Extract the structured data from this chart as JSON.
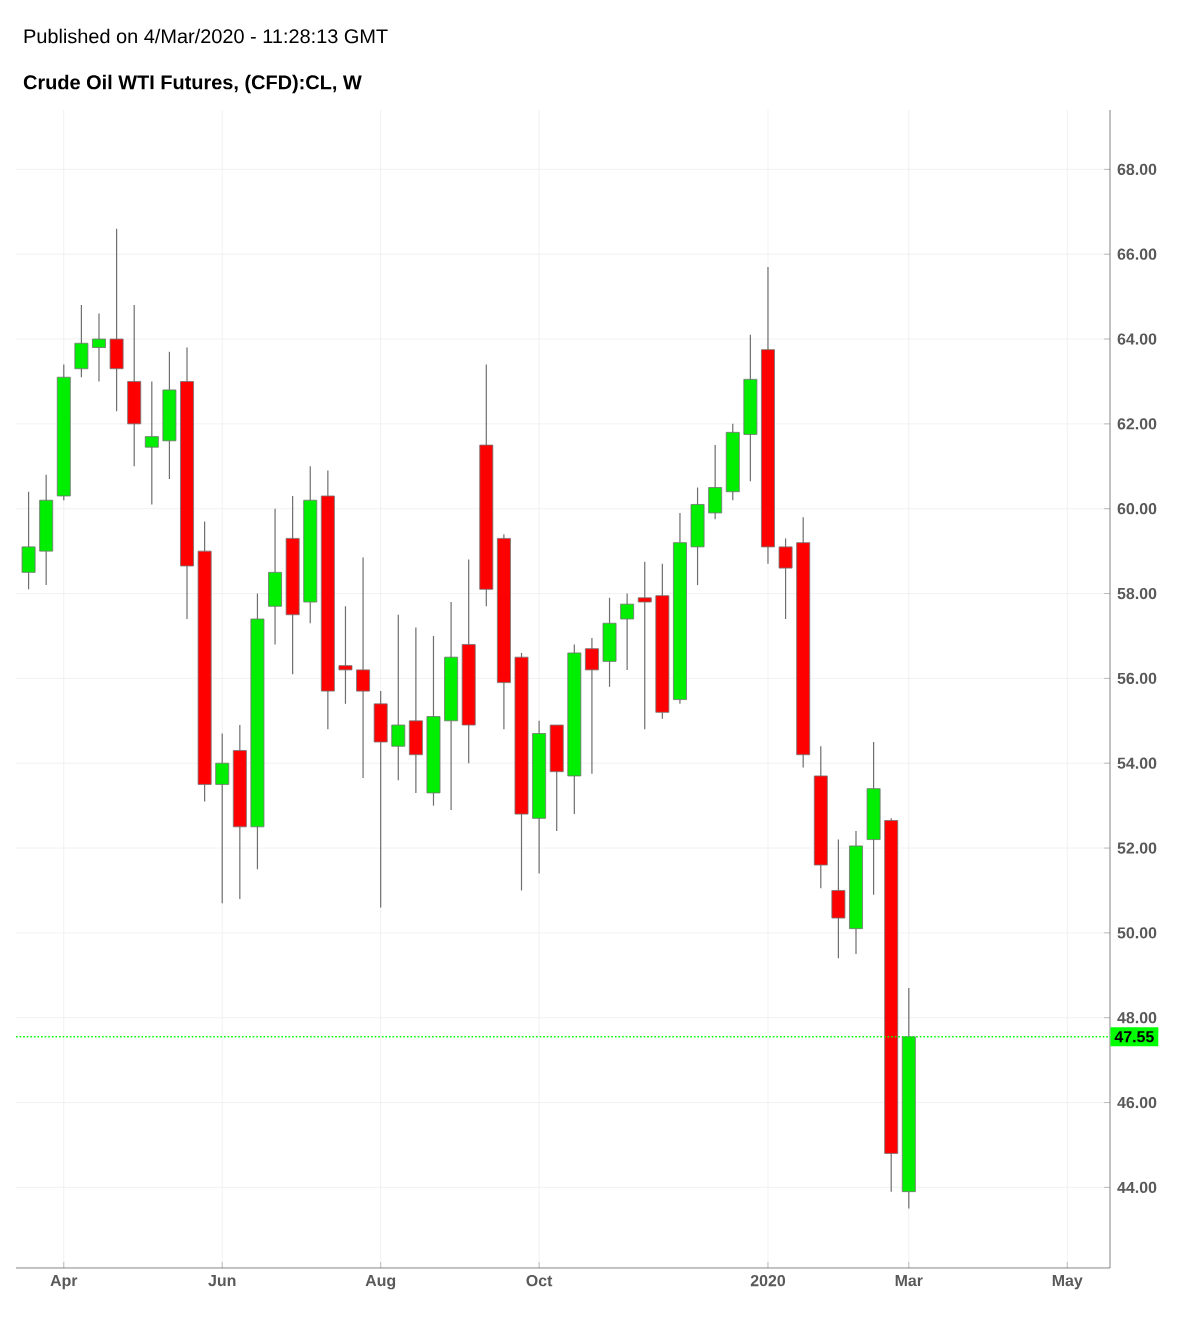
{
  "chart_data": {
    "type": "candlestick",
    "title": "Crude Oil WTI Futures, (CFD):CL, W",
    "annotations": [
      "Published on 4/Mar/2020 - 11:28:13 GMT"
    ],
    "x": [
      "2019-03-18",
      "2019-03-25",
      "2019-04-01",
      "2019-04-08",
      "2019-04-15",
      "2019-04-22",
      "2019-04-29",
      "2019-05-06",
      "2019-05-13",
      "2019-05-20",
      "2019-05-27",
      "2019-06-03",
      "2019-06-10",
      "2019-06-17",
      "2019-06-24",
      "2019-07-01",
      "2019-07-08",
      "2019-07-15",
      "2019-07-22",
      "2019-07-29",
      "2019-08-05",
      "2019-08-12",
      "2019-08-19",
      "2019-08-26",
      "2019-09-02",
      "2019-09-09",
      "2019-09-16",
      "2019-09-23",
      "2019-09-30",
      "2019-10-07",
      "2019-10-14",
      "2019-10-21",
      "2019-10-28",
      "2019-11-04",
      "2019-11-11",
      "2019-11-18",
      "2019-11-25",
      "2019-12-02",
      "2019-12-09",
      "2019-12-16",
      "2019-12-23",
      "2019-12-30",
      "2020-01-06",
      "2020-01-13",
      "2020-01-20",
      "2020-01-27",
      "2020-02-03",
      "2020-02-10",
      "2020-02-17",
      "2020-02-24",
      "2020-03-02"
    ],
    "ohlc": [
      [
        58.5,
        60.4,
        58.1,
        59.1
      ],
      [
        59.0,
        60.8,
        58.2,
        60.2
      ],
      [
        60.3,
        63.4,
        60.2,
        63.1
      ],
      [
        63.3,
        64.8,
        63.1,
        63.9
      ],
      [
        63.8,
        64.6,
        63.0,
        64.0
      ],
      [
        64.0,
        66.6,
        62.3,
        63.3
      ],
      [
        63.0,
        64.8,
        61.0,
        62.0
      ],
      [
        61.45,
        63.0,
        60.1,
        61.7
      ],
      [
        61.6,
        63.7,
        60.7,
        62.8
      ],
      [
        63.0,
        63.8,
        57.4,
        58.65
      ],
      [
        59.0,
        59.7,
        53.1,
        53.5
      ],
      [
        53.5,
        54.7,
        50.7,
        54.0
      ],
      [
        54.3,
        54.9,
        50.8,
        52.5
      ],
      [
        52.5,
        58.0,
        51.5,
        57.4
      ],
      [
        57.7,
        60.0,
        56.8,
        58.5
      ],
      [
        59.3,
        60.3,
        56.1,
        57.5
      ],
      [
        57.8,
        61.0,
        57.3,
        60.2
      ],
      [
        60.3,
        60.9,
        54.8,
        55.7
      ],
      [
        56.3,
        57.7,
        55.4,
        56.2
      ],
      [
        56.2,
        58.85,
        53.65,
        55.7
      ],
      [
        55.4,
        55.7,
        50.6,
        54.5
      ],
      [
        54.4,
        57.5,
        53.6,
        54.9
      ],
      [
        55.0,
        57.2,
        53.3,
        54.2
      ],
      [
        53.3,
        57.0,
        53.0,
        55.1
      ],
      [
        55.0,
        57.8,
        52.9,
        56.5
      ],
      [
        56.8,
        58.8,
        54.0,
        54.9
      ],
      [
        61.5,
        63.4,
        57.7,
        58.1
      ],
      [
        59.3,
        59.4,
        54.8,
        55.9
      ],
      [
        56.5,
        56.6,
        51.0,
        52.8
      ],
      [
        52.7,
        55.0,
        51.4,
        54.7
      ],
      [
        54.9,
        54.9,
        52.4,
        53.8
      ],
      [
        53.7,
        56.8,
        52.8,
        56.6
      ],
      [
        56.7,
        56.95,
        53.75,
        56.2
      ],
      [
        56.4,
        57.9,
        55.8,
        57.3
      ],
      [
        57.4,
        58.0,
        56.2,
        57.75
      ],
      [
        57.9,
        58.75,
        54.8,
        57.8
      ],
      [
        57.95,
        58.7,
        55.05,
        55.2
      ],
      [
        55.5,
        59.9,
        55.4,
        59.2
      ],
      [
        59.1,
        60.5,
        58.2,
        60.1
      ],
      [
        59.9,
        61.5,
        59.75,
        60.5
      ],
      [
        60.4,
        62.0,
        60.2,
        61.8
      ],
      [
        61.75,
        64.1,
        60.65,
        63.05
      ],
      [
        63.75,
        65.7,
        58.7,
        59.1
      ],
      [
        59.1,
        59.3,
        57.4,
        58.6
      ],
      [
        59.2,
        59.8,
        53.9,
        54.2
      ],
      [
        53.7,
        54.4,
        51.05,
        51.6
      ],
      [
        51.0,
        52.2,
        49.4,
        50.35
      ],
      [
        50.1,
        52.4,
        49.5,
        52.05
      ],
      [
        52.2,
        54.5,
        50.9,
        53.4
      ],
      [
        52.65,
        52.7,
        43.9,
        44.8
      ],
      [
        43.9,
        48.7,
        43.5,
        47.55
      ]
    ],
    "colors": [
      "#00ee00",
      "#00ee00",
      "#00ee00",
      "#00ee00",
      "#00ee00",
      "#ff0000",
      "#ff0000",
      "#00ee00",
      "#00ee00",
      "#ff0000",
      "#ff0000",
      "#00ee00",
      "#ff0000",
      "#00ee00",
      "#00ee00",
      "#ff0000",
      "#00ee00",
      "#ff0000",
      "#ff0000",
      "#ff0000",
      "#ff0000",
      "#00ee00",
      "#ff0000",
      "#00ee00",
      "#00ee00",
      "#ff0000",
      "#ff0000",
      "#ff0000",
      "#ff0000",
      "#00ee00",
      "#ff0000",
      "#00ee00",
      "#ff0000",
      "#00ee00",
      "#00ee00",
      "#ff0000",
      "#ff0000",
      "#00ee00",
      "#00ee00",
      "#00ee00",
      "#00ee00",
      "#00ee00",
      "#ff0000",
      "#ff0000",
      "#ff0000",
      "#ff0000",
      "#ff0000",
      "#00ee00",
      "#00ee00",
      "#ff0000",
      "#00ee00"
    ],
    "xlim": [
      "2019-03-13",
      "2020-05-21"
    ],
    "xticks": [
      {
        "value": "2019-04-01",
        "label": "Apr"
      },
      {
        "value": "2019-06-03",
        "label": "Jun"
      },
      {
        "value": "2019-08-05",
        "label": "Aug"
      },
      {
        "value": "2019-10-07",
        "label": "Oct"
      },
      {
        "value": "2020-01-06",
        "label": "2020"
      },
      {
        "value": "2020-03-02",
        "label": "Mar"
      },
      {
        "value": "2020-05-04",
        "label": "May"
      }
    ],
    "ylim": [
      42.1,
      69.4
    ],
    "yticks": [
      {
        "value": 44,
        "label": "44.00"
      },
      {
        "value": 46,
        "label": "46.00"
      },
      {
        "value": 48,
        "label": "48.00"
      },
      {
        "value": 50,
        "label": "50.00"
      },
      {
        "value": 52,
        "label": "52.00"
      },
      {
        "value": 54,
        "label": "54.00"
      },
      {
        "value": 56,
        "label": "56.00"
      },
      {
        "value": 58,
        "label": "58.00"
      },
      {
        "value": 60,
        "label": "60.00"
      },
      {
        "value": 62,
        "label": "62.00"
      },
      {
        "value": 64,
        "label": "64.00"
      },
      {
        "value": 66,
        "label": "66.00"
      },
      {
        "value": 68,
        "label": "68.00"
      }
    ],
    "grid": true,
    "ref_lines": [
      {
        "axis": "y",
        "value": 47.55,
        "label": "47.55",
        "color": "#00ff00",
        "line_style": "dotted"
      }
    ]
  }
}
